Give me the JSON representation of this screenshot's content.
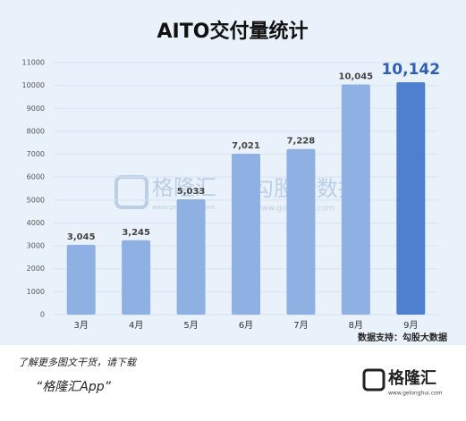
{
  "chart_data": {
    "type": "bar",
    "title": "AITO交付量统计",
    "categories": [
      "3月",
      "4月",
      "5月",
      "6月",
      "7月",
      "8月",
      "9月"
    ],
    "values": [
      3045,
      3245,
      5033,
      7021,
      7228,
      10045,
      10142
    ],
    "value_labels": [
      "3,045",
      "3,245",
      "5,033",
      "7,021",
      "7,228",
      "10,045",
      "10,142"
    ],
    "colors": [
      "#8eb0e3",
      "#8eb0e3",
      "#8eb0e3",
      "#8eb0e3",
      "#8eb0e3",
      "#8eb0e3",
      "#4f7fcf"
    ],
    "ylim": [
      0,
      11000
    ],
    "yticks": [
      0,
      1000,
      2000,
      3000,
      4000,
      5000,
      6000,
      7000,
      8000,
      9000,
      10000,
      11000
    ],
    "grid": true,
    "source": "数据支持：勾股大数据"
  },
  "watermark": {
    "left": "格隆汇",
    "left_url": "www.gelonghui.com",
    "right": "勾股大数据",
    "right_url": "www.gogudata.com"
  },
  "footer": {
    "line1": "了解更多图文干货，请下载",
    "line2": "“格隆汇App”",
    "logo": "格隆汇",
    "logo_url": "www.gelonghui.com"
  }
}
